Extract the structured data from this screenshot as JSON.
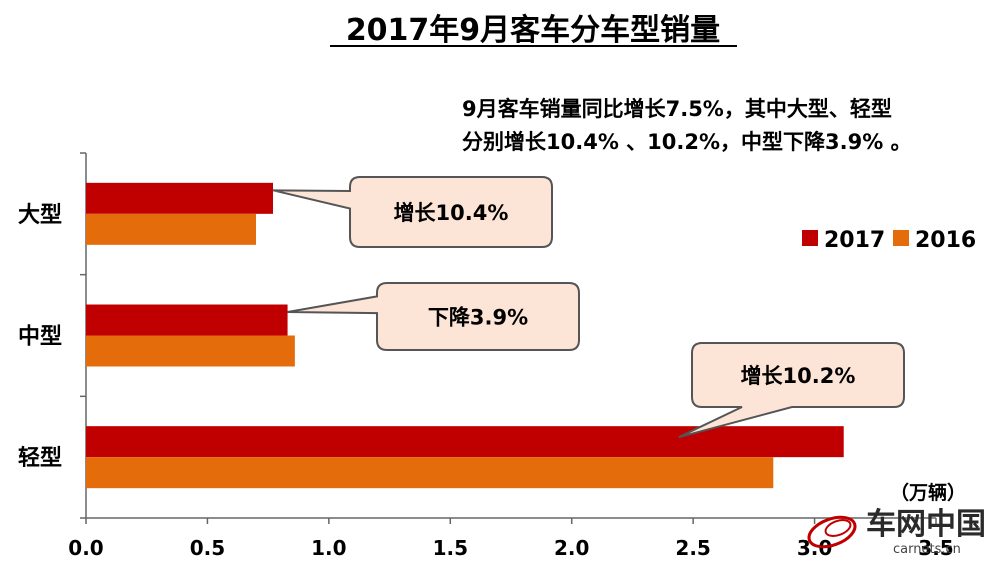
{
  "chart_data": {
    "type": "bar",
    "orientation": "horizontal",
    "title": "2017年9月客车分车型销量",
    "annotation_text": [
      "9月客车销量同比增长7.5%，其中大型、轻型",
      "分别增长10.4% 、10.2%，中型下降3.9% 。"
    ],
    "categories": [
      "大型",
      "中型",
      "轻型"
    ],
    "series": [
      {
        "name": "2017",
        "color": "#c00000",
        "values": [
          0.77,
          0.83,
          3.12
        ]
      },
      {
        "name": "2016",
        "color": "#e46c0a",
        "values": [
          0.7,
          0.86,
          2.83
        ]
      }
    ],
    "unit_label": "（万辆）",
    "xlim": [
      0,
      3.5
    ],
    "x_ticks": [
      "0.0",
      "0.5",
      "1.0",
      "1.5",
      "2.0",
      "2.5",
      "3.0",
      "3.5"
    ],
    "legend_placement": "right",
    "callouts": [
      {
        "text": "增长10.4%",
        "category": "大型"
      },
      {
        "text": "下降3.9%",
        "category": "中型"
      },
      {
        "text": "增长10.2%",
        "category": "轻型"
      }
    ],
    "callout_fill": "#fce4d6",
    "grid": false
  },
  "watermark": {
    "brand": "车网中国",
    "url": "carnets.cn"
  }
}
